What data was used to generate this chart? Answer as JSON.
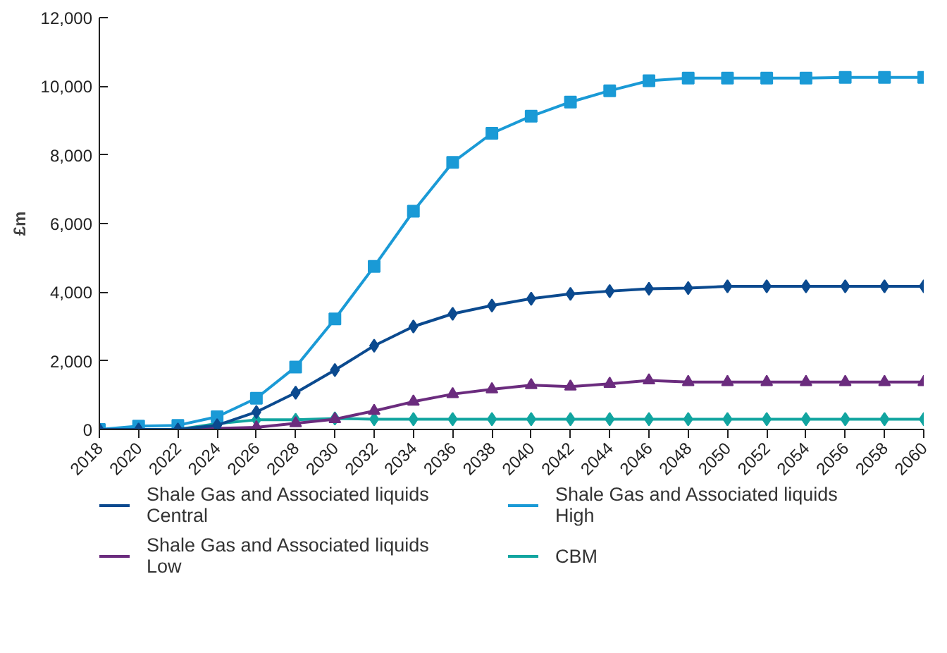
{
  "chart_data": {
    "type": "line",
    "ylabel": "£m",
    "x": [
      2018,
      2020,
      2022,
      2024,
      2026,
      2028,
      2030,
      2032,
      2034,
      2036,
      2038,
      2040,
      2042,
      2044,
      2046,
      2048,
      2050,
      2052,
      2054,
      2056,
      2058,
      2060
    ],
    "series": [
      {
        "name": "Shale Gas and Associated liquids Central",
        "color": "#0b4a8f",
        "marker": "diamond",
        "values": [
          0,
          0,
          0,
          120,
          510,
          1070,
          1730,
          2440,
          3000,
          3370,
          3610,
          3810,
          3950,
          4030,
          4100,
          4120,
          4170,
          4170,
          4170,
          4170,
          4170,
          4170
        ]
      },
      {
        "name": "Shale Gas and Associated liquids High",
        "color": "#1a9ad6",
        "marker": "square",
        "values": [
          0,
          100,
          120,
          370,
          910,
          1820,
          3220,
          4750,
          6360,
          7780,
          8630,
          9130,
          9540,
          9870,
          10160,
          10240,
          10240,
          10240,
          10240,
          10260,
          10260,
          10260
        ]
      },
      {
        "name": "Shale Gas and Associated liquids Low",
        "color": "#6b2c7e",
        "marker": "triangle",
        "values": [
          null,
          null,
          0,
          30,
          60,
          180,
          300,
          540,
          810,
          1030,
          1170,
          1290,
          1250,
          1330,
          1430,
          1380,
          1380,
          1380,
          1380,
          1380,
          1380,
          1380
        ]
      },
      {
        "name": "CBM",
        "color": "#12a5a0",
        "marker": "diamond",
        "values": [
          0,
          0,
          0,
          170,
          280,
          280,
          320,
          300,
          300,
          300,
          300,
          300,
          300,
          300,
          300,
          300,
          300,
          300,
          300,
          300,
          300,
          300
        ]
      }
    ],
    "xlim": [
      2018,
      2060
    ],
    "xticks": [
      2018,
      2020,
      2022,
      2024,
      2026,
      2028,
      2030,
      2032,
      2034,
      2036,
      2038,
      2040,
      2042,
      2044,
      2046,
      2048,
      2050,
      2052,
      2054,
      2056,
      2058,
      2060
    ],
    "ylim": [
      0,
      12000
    ],
    "yticks": [
      {
        "value": 0,
        "label": "0"
      },
      {
        "value": 2000,
        "label": "2,000"
      },
      {
        "value": 4000,
        "label": "4,000"
      },
      {
        "value": 6000,
        "label": "6,000"
      },
      {
        "value": 8000,
        "label": "8,000"
      },
      {
        "value": 10000,
        "label": "10,000"
      },
      {
        "value": 12000,
        "label": "12,000"
      }
    ],
    "grid": false,
    "legend": "bottom"
  }
}
